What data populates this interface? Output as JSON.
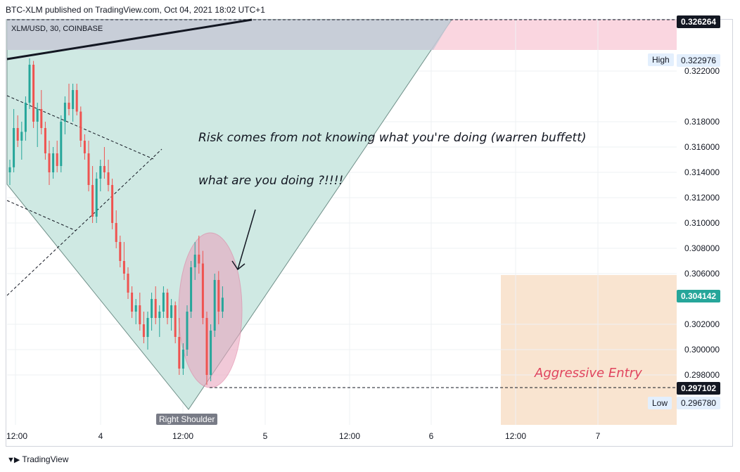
{
  "header": {
    "published": "BTC-XLM published on TradingView.com, Oct 04, 2021 18:02 UTC+1"
  },
  "legend": {
    "symbol": "XLM/USD, 30, COINBASE"
  },
  "annotations": {
    "quote": "Risk comes from not knowing what you're doing (warren buffett)",
    "question": "what are you doing ?!!!!",
    "aggressive_entry": "Aggressive Entry",
    "right_shoulder": "Right Shoulder"
  },
  "price_labels": {
    "top": "0.326264",
    "high_tag": "High",
    "high": "0.322976",
    "current": "0.304142",
    "entry": "0.297102",
    "low_tag": "Low",
    "low": "0.296780"
  },
  "footer": {
    "brand": "TradingView"
  },
  "colors": {
    "up": "#26a69a",
    "down": "#ef5350",
    "triangle_fill": "#cfe9e3",
    "pink_zone": "#fad6e0",
    "entry_box": "#f9e4d0",
    "ellipse": "#e8a6bf",
    "current_price": "#26a69a"
  },
  "chart_data": {
    "type": "candlestick",
    "symbol": "XLM/USD",
    "interval": "30",
    "exchange": "COINBASE",
    "y_axis_ticks": [
      0.322,
      0.318,
      0.316,
      0.314,
      0.312,
      0.31,
      0.308,
      0.306,
      0.302,
      0.3,
      0.298
    ],
    "x_axis_ticks": [
      "12:00",
      "4",
      "12:00",
      "5",
      "12:00",
      "6",
      "12:00",
      "7"
    ],
    "ylim": [
      0.2945,
      0.3265
    ],
    "grid": true,
    "candles": [
      {
        "o": 0.314,
        "h": 0.315,
        "l": 0.313,
        "c": 0.3144
      },
      {
        "o": 0.3144,
        "h": 0.319,
        "l": 0.314,
        "c": 0.3175
      },
      {
        "o": 0.3175,
        "h": 0.3185,
        "l": 0.316,
        "c": 0.3165
      },
      {
        "o": 0.3165,
        "h": 0.318,
        "l": 0.315,
        "c": 0.3172
      },
      {
        "o": 0.3172,
        "h": 0.32,
        "l": 0.3165,
        "c": 0.3195
      },
      {
        "o": 0.3195,
        "h": 0.323,
        "l": 0.319,
        "c": 0.3225
      },
      {
        "o": 0.3225,
        "h": 0.3228,
        "l": 0.3175,
        "c": 0.318
      },
      {
        "o": 0.318,
        "h": 0.3195,
        "l": 0.316,
        "c": 0.319
      },
      {
        "o": 0.319,
        "h": 0.3205,
        "l": 0.317,
        "c": 0.3175
      },
      {
        "o": 0.3175,
        "h": 0.318,
        "l": 0.315,
        "c": 0.3155
      },
      {
        "o": 0.3155,
        "h": 0.3165,
        "l": 0.313,
        "c": 0.314
      },
      {
        "o": 0.314,
        "h": 0.316,
        "l": 0.3135,
        "c": 0.3155
      },
      {
        "o": 0.3155,
        "h": 0.3165,
        "l": 0.314,
        "c": 0.3145
      },
      {
        "o": 0.3145,
        "h": 0.3185,
        "l": 0.314,
        "c": 0.318
      },
      {
        "o": 0.318,
        "h": 0.32,
        "l": 0.317,
        "c": 0.3195
      },
      {
        "o": 0.3195,
        "h": 0.321,
        "l": 0.3185,
        "c": 0.319
      },
      {
        "o": 0.319,
        "h": 0.321,
        "l": 0.318,
        "c": 0.3205
      },
      {
        "o": 0.3205,
        "h": 0.321,
        "l": 0.3185,
        "c": 0.3188
      },
      {
        "o": 0.3188,
        "h": 0.3192,
        "l": 0.316,
        "c": 0.3165
      },
      {
        "o": 0.3165,
        "h": 0.317,
        "l": 0.315,
        "c": 0.3155
      },
      {
        "o": 0.3155,
        "h": 0.3165,
        "l": 0.3125,
        "c": 0.313
      },
      {
        "o": 0.313,
        "h": 0.3145,
        "l": 0.31,
        "c": 0.3105
      },
      {
        "o": 0.3105,
        "h": 0.314,
        "l": 0.31,
        "c": 0.3135
      },
      {
        "o": 0.3135,
        "h": 0.315,
        "l": 0.3125,
        "c": 0.3145
      },
      {
        "o": 0.3145,
        "h": 0.316,
        "l": 0.3135,
        "c": 0.314
      },
      {
        "o": 0.314,
        "h": 0.315,
        "l": 0.3125,
        "c": 0.313
      },
      {
        "o": 0.313,
        "h": 0.3135,
        "l": 0.3095,
        "c": 0.31
      },
      {
        "o": 0.31,
        "h": 0.311,
        "l": 0.308,
        "c": 0.3085
      },
      {
        "o": 0.3085,
        "h": 0.309,
        "l": 0.3065,
        "c": 0.307
      },
      {
        "o": 0.307,
        "h": 0.3085,
        "l": 0.3055,
        "c": 0.306
      },
      {
        "o": 0.306,
        "h": 0.3065,
        "l": 0.304,
        "c": 0.3045
      },
      {
        "o": 0.3045,
        "h": 0.305,
        "l": 0.3025,
        "c": 0.303
      },
      {
        "o": 0.303,
        "h": 0.304,
        "l": 0.302,
        "c": 0.3035
      },
      {
        "o": 0.3035,
        "h": 0.3045,
        "l": 0.3015,
        "c": 0.302
      },
      {
        "o": 0.302,
        "h": 0.303,
        "l": 0.3005,
        "c": 0.301
      },
      {
        "o": 0.301,
        "h": 0.303,
        "l": 0.3,
        "c": 0.3025
      },
      {
        "o": 0.3025,
        "h": 0.3045,
        "l": 0.3015,
        "c": 0.304
      },
      {
        "o": 0.304,
        "h": 0.305,
        "l": 0.302,
        "c": 0.3025
      },
      {
        "o": 0.3025,
        "h": 0.3035,
        "l": 0.301,
        "c": 0.303
      },
      {
        "o": 0.303,
        "h": 0.305,
        "l": 0.3025,
        "c": 0.3045
      },
      {
        "o": 0.3045,
        "h": 0.3048,
        "l": 0.302,
        "c": 0.3025
      },
      {
        "o": 0.3025,
        "h": 0.304,
        "l": 0.3015,
        "c": 0.3035
      },
      {
        "o": 0.3035,
        "h": 0.3038,
        "l": 0.3005,
        "c": 0.301
      },
      {
        "o": 0.301,
        "h": 0.3025,
        "l": 0.298,
        "c": 0.2985
      },
      {
        "o": 0.2985,
        "h": 0.3005,
        "l": 0.298,
        "c": 0.3
      },
      {
        "o": 0.3,
        "h": 0.3035,
        "l": 0.2995,
        "c": 0.303
      },
      {
        "o": 0.303,
        "h": 0.307,
        "l": 0.3025,
        "c": 0.3065
      },
      {
        "o": 0.3065,
        "h": 0.3085,
        "l": 0.3055,
        "c": 0.3075
      },
      {
        "o": 0.3075,
        "h": 0.309,
        "l": 0.306,
        "c": 0.3068
      },
      {
        "o": 0.3068,
        "h": 0.3078,
        "l": 0.302,
        "c": 0.3025
      },
      {
        "o": 0.3025,
        "h": 0.303,
        "l": 0.2972,
        "c": 0.298
      },
      {
        "o": 0.298,
        "h": 0.302,
        "l": 0.2975,
        "c": 0.3015
      },
      {
        "o": 0.3015,
        "h": 0.306,
        "l": 0.301,
        "c": 0.3055
      },
      {
        "o": 0.3055,
        "h": 0.3062,
        "l": 0.302,
        "c": 0.303
      },
      {
        "o": 0.303,
        "h": 0.305,
        "l": 0.3025,
        "c": 0.3041
      }
    ]
  }
}
